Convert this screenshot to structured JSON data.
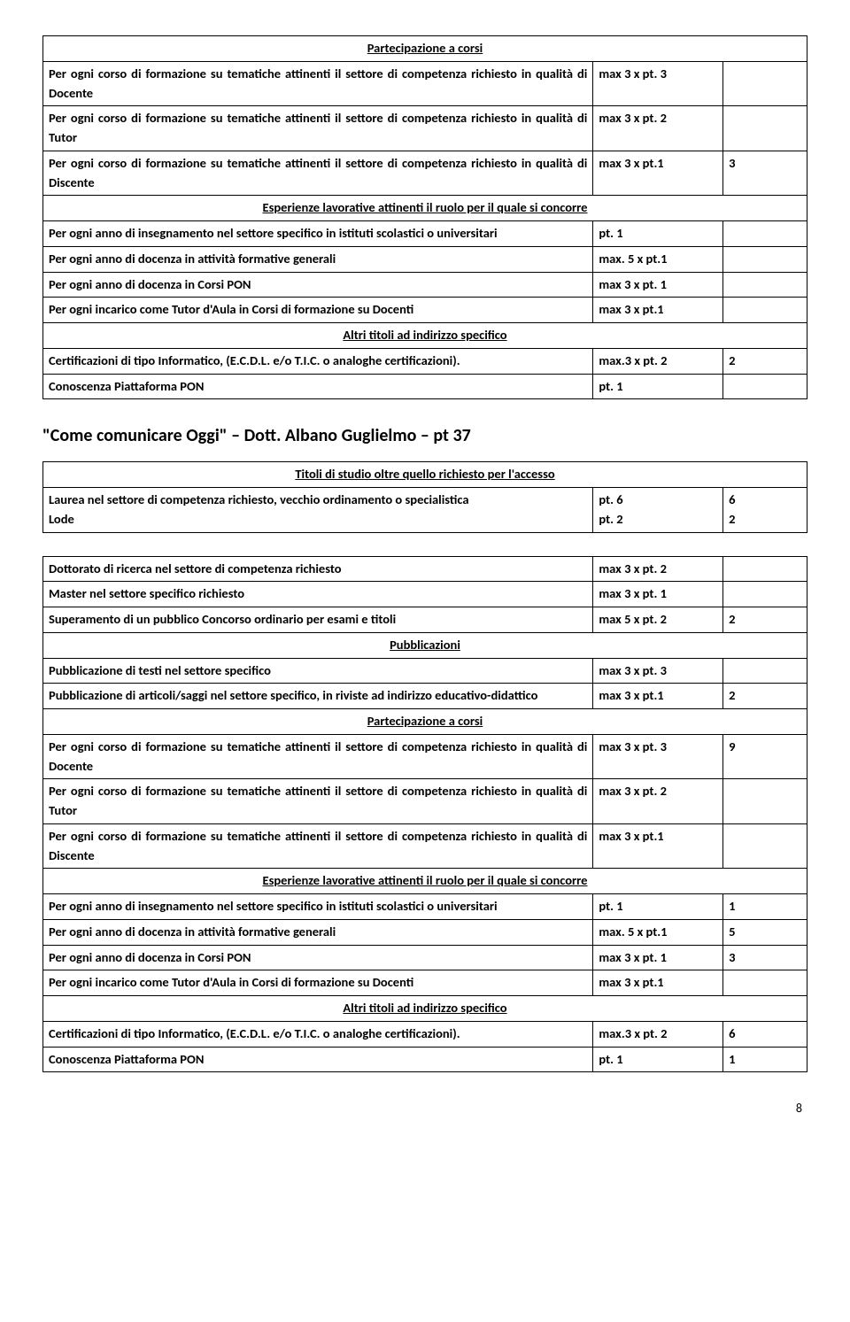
{
  "section_labels": {
    "partecipazione": "Partecipazione a corsi",
    "esperienze": "Esperienze lavorative attinenti il ruolo per il quale si concorre",
    "altri_titoli": "Altri titoli ad indirizzo specifico",
    "titoli_studio": "Titoli di studio oltre quello richiesto per l'accesso",
    "pubblicazioni": "Pubblicazioni"
  },
  "rows_top": [
    {
      "desc": "Per ogni corso di formazione su tematiche attinenti il settore di competenza richiesto in qualità di Docente",
      "pts": "max 3 x pt. 3",
      "score": ""
    },
    {
      "desc": "Per ogni corso di formazione su tematiche attinenti il settore di competenza richiesto in qualità di Tutor",
      "pts": "max 3 x pt. 2",
      "score": ""
    },
    {
      "desc": "Per ogni corso di formazione su tematiche attinenti il settore di competenza richiesto in qualità di Discente",
      "pts": "max 3 x pt.1",
      "score": "3"
    }
  ],
  "rows_esp": [
    {
      "desc": "Per ogni anno di insegnamento nel settore specifico in istituti scolastici o universitari",
      "pts": "pt. 1",
      "score": ""
    },
    {
      "desc": "Per ogni anno di docenza in attività formative generali",
      "pts": "max. 5 x pt.1",
      "score": ""
    },
    {
      "desc": "Per ogni anno di docenza in Corsi PON",
      "pts": "max 3 x pt. 1",
      "score": ""
    },
    {
      "desc": "Per ogni incarico come Tutor d'Aula in Corsi di formazione su Docenti",
      "pts": "max 3 x pt.1",
      "score": ""
    }
  ],
  "rows_altri": [
    {
      "desc": "Certificazioni di tipo Informatico, (E.C.D.L. e/o T.I.C. o analoghe certificazioni).",
      "pts": "max.3 x pt. 2",
      "score": "2"
    },
    {
      "desc": "Conoscenza Piattaforma PON",
      "pts": "pt. 1",
      "score": ""
    }
  ],
  "title_main": "\"Come comunicare Oggi\" – Dott. Albano Guglielmo – pt 37",
  "rows_titoli": {
    "laurea_label": "Laurea nel settore di competenza richiesto, vecchio ordinamento o specialistica",
    "laurea_pts": "pt. 6",
    "laurea_score": "6",
    "lode_label": "Lode",
    "lode_pts": "pt. 2",
    "lode_score": "2"
  },
  "rows_studio": [
    {
      "desc": "Dottorato di ricerca nel settore di competenza richiesto",
      "pts": "max 3 x pt. 2",
      "score": ""
    },
    {
      "desc": "Master nel settore specifico richiesto",
      "pts": "max 3 x pt. 1",
      "score": ""
    },
    {
      "desc": "Superamento di un pubblico Concorso ordinario per esami e titoli",
      "pts": "max 5 x pt. 2",
      "score": "2"
    }
  ],
  "rows_pubbl": [
    {
      "desc": "Pubblicazione di testi nel settore specifico",
      "pts": "max 3 x pt. 3",
      "score": ""
    },
    {
      "desc": "Pubblicazione di articoli/saggi nel settore specifico, in riviste ad indirizzo educativo-didattico",
      "pts": "max 3 x pt.1",
      "score": "2"
    }
  ],
  "rows_part2": [
    {
      "desc": "Per ogni corso di formazione su tematiche attinenti il settore di competenza richiesto in qualità di Docente",
      "pts": "max 3 x pt. 3",
      "score": "9"
    },
    {
      "desc": "Per ogni corso di formazione su tematiche attinenti il settore di competenza richiesto in qualità di Tutor",
      "pts": "max 3 x pt. 2",
      "score": ""
    },
    {
      "desc": "Per ogni corso di formazione su tematiche attinenti il settore di competenza richiesto in qualità di Discente",
      "pts": "max 3 x pt.1",
      "score": ""
    }
  ],
  "rows_esp2": [
    {
      "desc": "Per ogni anno di insegnamento nel settore specifico in istituti scolastici o universitari",
      "pts": "pt. 1",
      "score": "1"
    },
    {
      "desc": "Per ogni anno di docenza in attività formative generali",
      "pts": "max. 5 x pt.1",
      "score": "5"
    },
    {
      "desc": "Per ogni anno di docenza in Corsi PON",
      "pts": "max 3 x pt. 1",
      "score": "3"
    },
    {
      "desc": "Per ogni incarico come Tutor d'Aula in Corsi di formazione su Docenti",
      "pts": "max 3 x pt.1",
      "score": ""
    }
  ],
  "rows_altri2": [
    {
      "desc": "Certificazioni di tipo Informatico, (E.C.D.L. e/o T.I.C. o analoghe certificazioni).",
      "pts": "max.3 x pt. 2",
      "score": "6"
    },
    {
      "desc": "Conoscenza Piattaforma PON",
      "pts": "pt. 1",
      "score": "1"
    }
  ],
  "page_number": "8"
}
